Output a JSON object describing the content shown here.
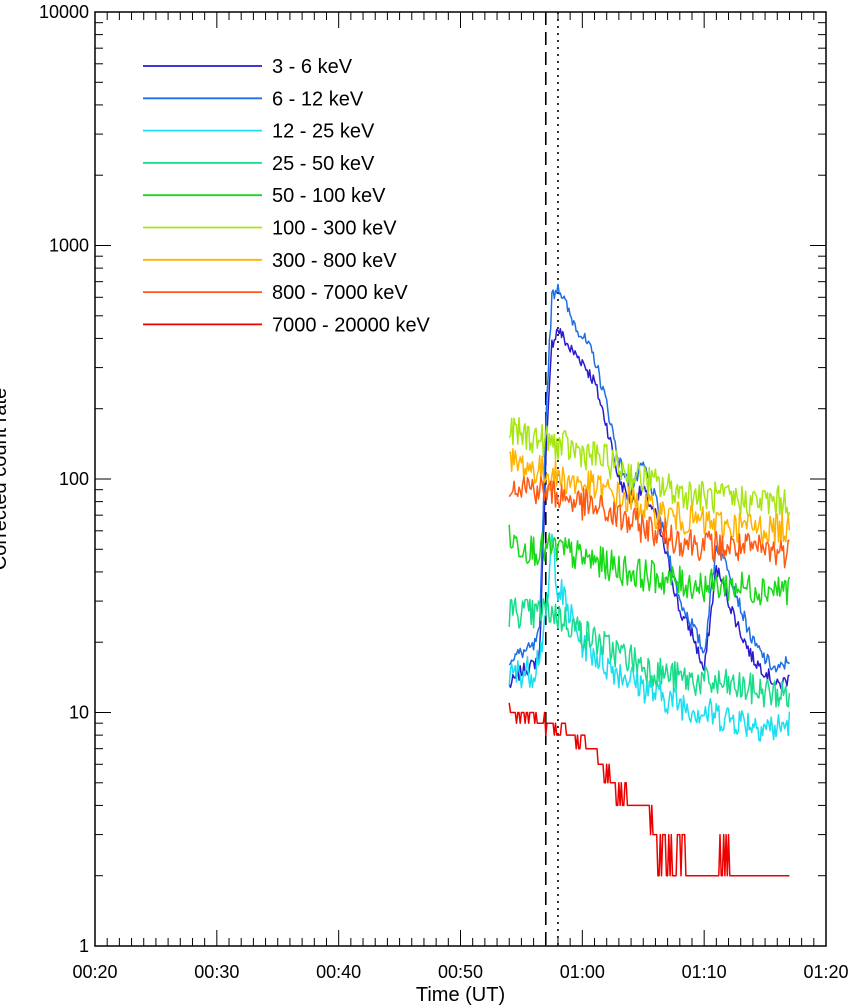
{
  "chart_data": {
    "type": "line",
    "title": "",
    "xlabel": "Time (UT)",
    "ylabel": "Corrected count rate",
    "yscale": "log",
    "xlim": [
      "00:20",
      "01:20"
    ],
    "ylim": [
      1,
      10000
    ],
    "x_ticks": [
      "00:20",
      "00:30",
      "00:40",
      "00:50",
      "01:00",
      "01:10",
      "01:20"
    ],
    "y_ticks": [
      "1",
      "10",
      "100",
      "1000",
      "10000"
    ],
    "grid": false,
    "legend_position": "top-left",
    "vlines": [
      {
        "x": "00:57",
        "style": "dashed"
      },
      {
        "x": "00:58",
        "style": "dotted"
      }
    ],
    "series": [
      {
        "name": "3 - 6 keV",
        "color": "#2a1ccc",
        "x": [
          "00:54",
          "00:55",
          "00:56",
          "00:56.5",
          "00:57",
          "00:57.5",
          "00:58",
          "00:59",
          "01:00",
          "01:01",
          "01:02",
          "01:03",
          "01:04",
          "01:05",
          "01:06",
          "01:07",
          "01:08",
          "01:09",
          "01:10",
          "01:11",
          "01:12",
          "01:13",
          "01:14",
          "01:15",
          "01:16",
          "01:17"
        ],
        "values": [
          13,
          15,
          16,
          18,
          120,
          380,
          440,
          360,
          320,
          260,
          170,
          100,
          80,
          90,
          70,
          45,
          27,
          22,
          15,
          42,
          30,
          22,
          17,
          15,
          13,
          14
        ]
      },
      {
        "name": "6 - 12 keV",
        "color": "#1f6fe6",
        "x": [
          "00:54",
          "00:55",
          "00:56",
          "00:56.5",
          "00:57",
          "00:57.5",
          "00:58",
          "00:59",
          "01:00",
          "01:01",
          "01:02",
          "01:03",
          "01:04",
          "01:05",
          "01:06",
          "01:07",
          "01:08",
          "01:09",
          "01:10",
          "01:11",
          "01:12",
          "01:13",
          "01:14",
          "01:15",
          "01:16",
          "01:17"
        ],
        "values": [
          17,
          18,
          19,
          22,
          180,
          600,
          680,
          500,
          410,
          330,
          210,
          120,
          90,
          115,
          82,
          50,
          30,
          24,
          18,
          52,
          42,
          28,
          20,
          17,
          15,
          17
        ]
      },
      {
        "name": "12 - 25 keV",
        "color": "#19dff0",
        "x": [
          "00:54",
          "00:55",
          "00:56",
          "00:57",
          "00:57.5",
          "00:58",
          "00:59",
          "01:00",
          "01:02",
          "01:04",
          "01:06",
          "01:08",
          "01:10",
          "01:12",
          "01:14",
          "01:16",
          "01:17"
        ],
        "values": [
          14,
          15,
          15,
          23,
          55,
          35,
          26,
          20,
          16,
          14,
          12,
          11,
          10,
          9.5,
          9,
          8.5,
          9
        ]
      },
      {
        "name": "25 - 50 keV",
        "color": "#18dc8a",
        "x": [
          "00:54",
          "00:55",
          "00:56",
          "00:57",
          "00:58",
          "00:59",
          "01:00",
          "01:02",
          "01:04",
          "01:06",
          "01:08",
          "01:10",
          "01:12",
          "01:14",
          "01:16",
          "01:17"
        ],
        "values": [
          27,
          27,
          26,
          28,
          26,
          24,
          22,
          19,
          17,
          15,
          14,
          13.5,
          13,
          12.5,
          12,
          12
        ]
      },
      {
        "name": "50 - 100 keV",
        "color": "#18d918",
        "x": [
          "00:54",
          "00:55",
          "00:56",
          "00:57",
          "00:58",
          "00:59",
          "01:00",
          "01:02",
          "01:04",
          "01:06",
          "01:08",
          "01:10",
          "01:12",
          "01:14",
          "01:16",
          "01:17"
        ],
        "values": [
          55,
          52,
          50,
          50,
          50,
          48,
          46,
          43,
          40,
          38,
          36,
          35,
          35,
          34,
          34,
          34
        ]
      },
      {
        "name": "100 - 300 keV",
        "color": "#a6e612",
        "x": [
          "00:54",
          "00:55",
          "00:56",
          "00:57",
          "00:58",
          "00:59",
          "01:00",
          "01:02",
          "01:04",
          "01:06",
          "01:08",
          "01:10",
          "01:12",
          "01:14",
          "01:16",
          "01:17"
        ],
        "values": [
          160,
          155,
          150,
          145,
          140,
          135,
          130,
          120,
          105,
          95,
          88,
          84,
          82,
          80,
          80,
          80
        ]
      },
      {
        "name": "300 - 800 keV",
        "color": "#ffb300",
        "x": [
          "00:54",
          "00:55",
          "00:56",
          "00:57",
          "00:58",
          "00:59",
          "01:00",
          "01:02",
          "01:04",
          "01:06",
          "01:08",
          "01:10",
          "01:12",
          "01:14",
          "01:16",
          "01:17"
        ],
        "values": [
          118,
          115,
          110,
          106,
          102,
          98,
          95,
          88,
          80,
          72,
          68,
          65,
          63,
          62,
          61,
          61
        ]
      },
      {
        "name": "800 - 7000 keV",
        "color": "#ff5a12",
        "x": [
          "00:54",
          "00:55",
          "00:56",
          "00:57",
          "00:58",
          "00:59",
          "01:00",
          "01:02",
          "01:04",
          "01:06",
          "01:08",
          "01:10",
          "01:12",
          "01:14",
          "01:16",
          "01:17"
        ],
        "values": [
          98,
          95,
          92,
          88,
          86,
          82,
          78,
          72,
          65,
          60,
          55,
          52,
          51,
          50,
          49,
          49
        ]
      },
      {
        "name": "7000 - 20000 keV",
        "color": "#ee0000",
        "x": [
          "00:54",
          "00:55",
          "00:56",
          "00:57",
          "00:58",
          "00:59",
          "01:00",
          "01:01",
          "01:02",
          "01:03",
          "01:04",
          "01:05",
          "01:06",
          "01:07",
          "01:08",
          "01:09",
          "01:10",
          "01:11",
          "01:12",
          "01:13",
          "01:14",
          "01:15",
          "01:16",
          "01:17"
        ],
        "values": [
          10.5,
          10,
          9.5,
          9,
          8.5,
          8,
          7.5,
          7,
          5.5,
          4.5,
          4.2,
          4,
          3.2,
          2.9,
          2.6,
          2.2,
          2.2,
          2.4,
          2.5,
          2.2,
          2.1,
          2.2,
          2.3,
          2.3
        ]
      }
    ]
  }
}
